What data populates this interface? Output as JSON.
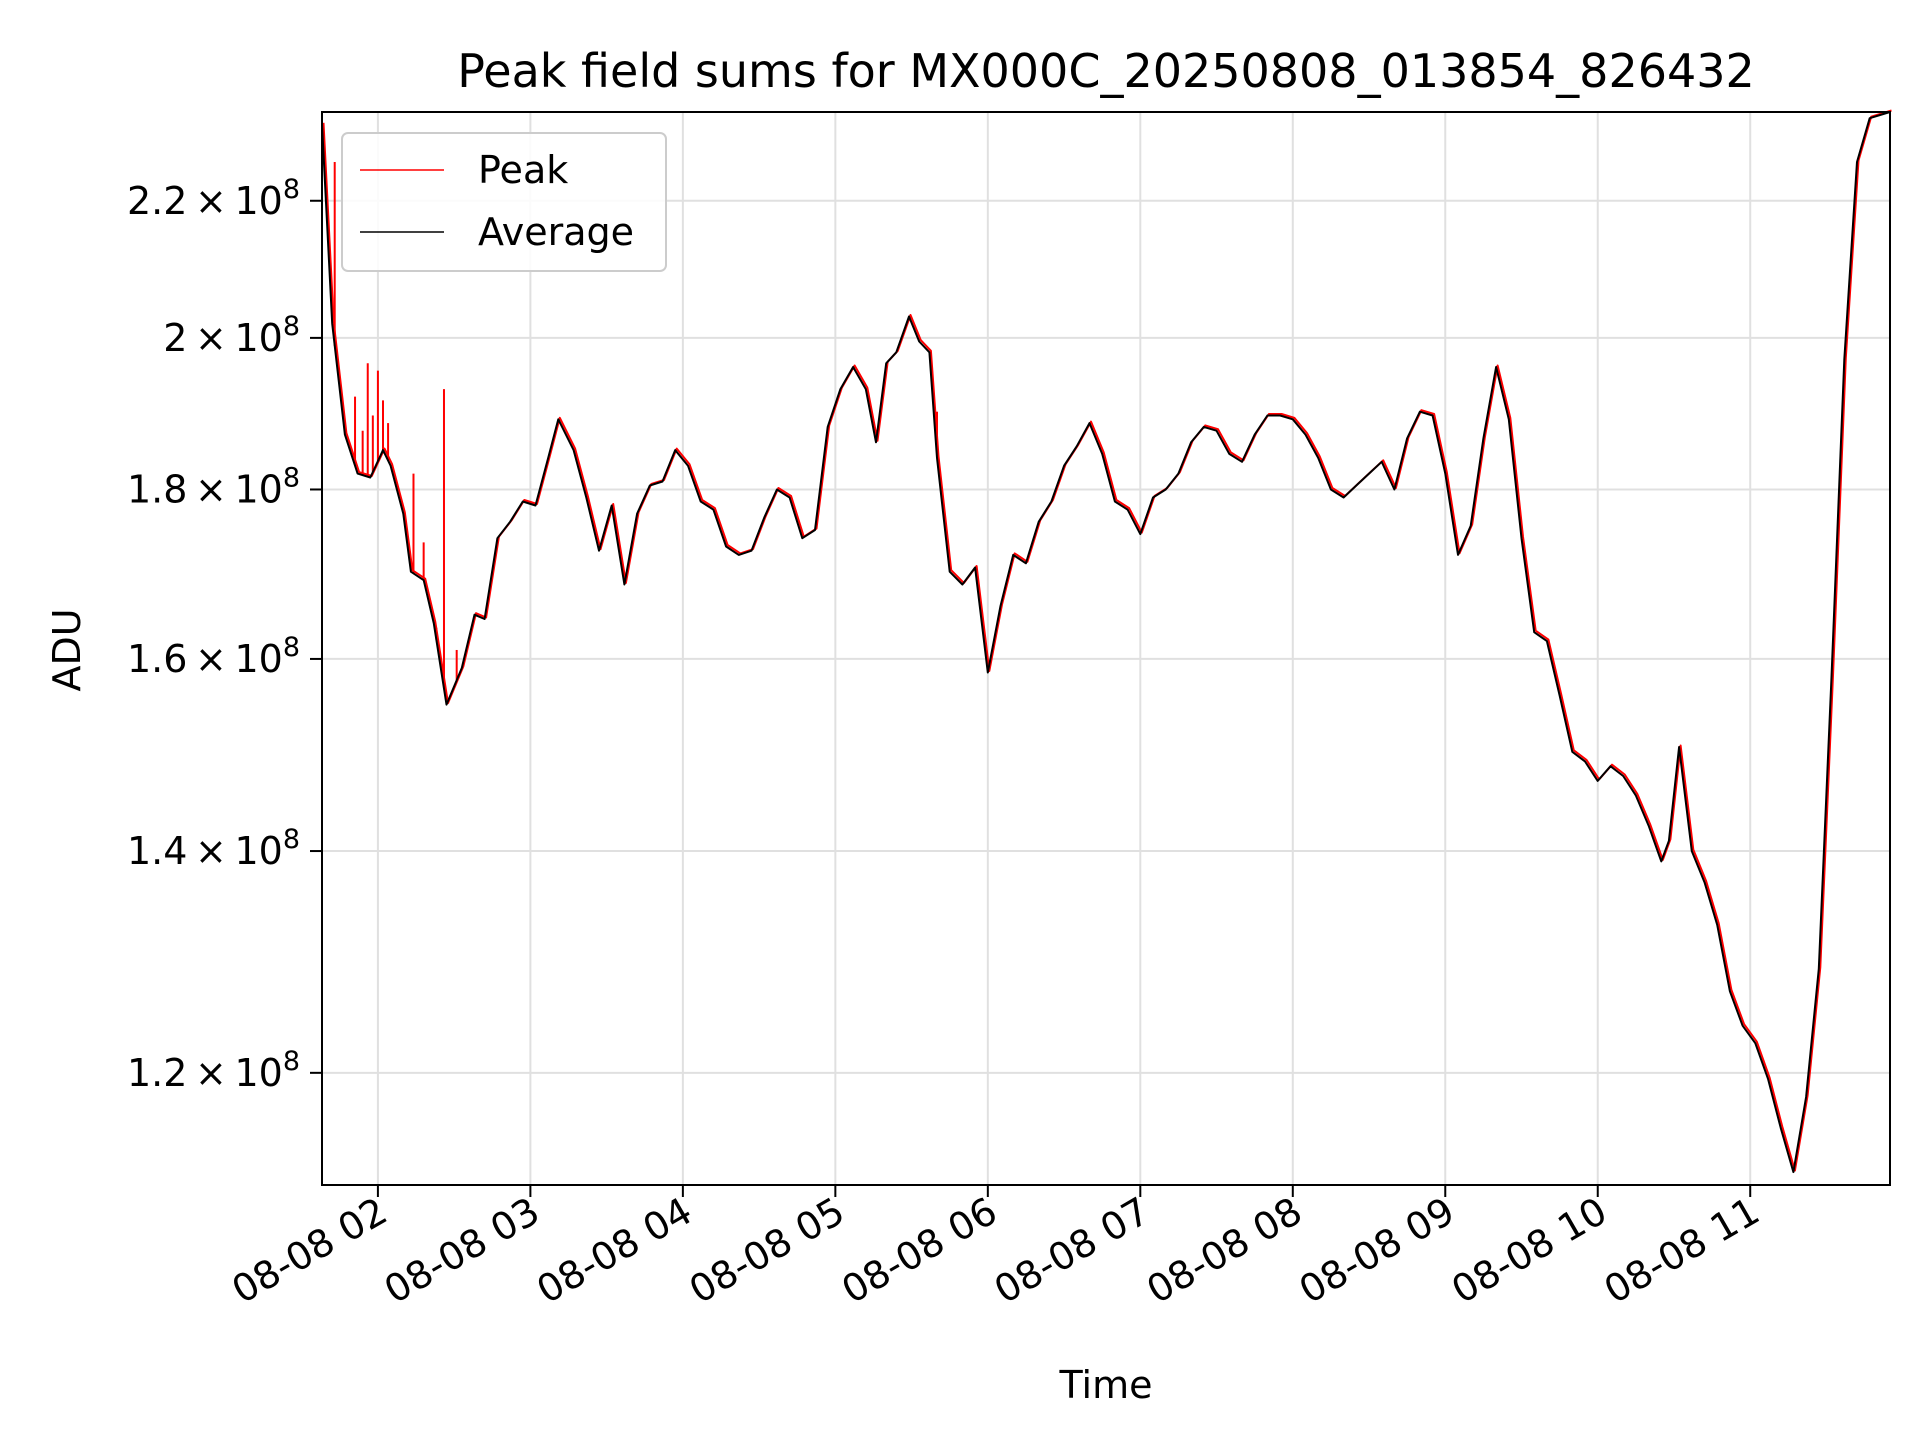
{
  "chart_data": {
    "type": "line",
    "title": "Peak field sums for MX000C_20250808_013854_826432",
    "xlabel": "Time",
    "ylabel": "ADU",
    "y_scale": "log",
    "xlim": [
      "08-08 01:38",
      "08-08 11:55"
    ],
    "ylim": [
      111000000,
      234000000
    ],
    "grid": true,
    "legend_position": "upper-left",
    "x_ticks": [
      "08-08 02",
      "08-08 03",
      "08-08 04",
      "08-08 05",
      "08-08 06",
      "08-08 07",
      "08-08 08",
      "08-08 09",
      "08-08 10",
      "08-08 11"
    ],
    "y_ticks": [
      {
        "value": 120000000,
        "mantissa": "1.2",
        "base": "10",
        "exponent": "8"
      },
      {
        "value": 140000000,
        "mantissa": "1.4",
        "base": "10",
        "exponent": "8"
      },
      {
        "value": 160000000,
        "mantissa": "1.6",
        "base": "10",
        "exponent": "8"
      },
      {
        "value": 180000000,
        "mantissa": "1.8",
        "base": "10",
        "exponent": "8"
      },
      {
        "value": 200000000,
        "mantissa": "2",
        "base": "10",
        "exponent": "8"
      },
      {
        "value": 220000000,
        "mantissa": "2.2",
        "base": "10",
        "exponent": "8"
      }
    ],
    "series": [
      {
        "name": "Average",
        "color": "#000000",
        "points": [
          [
            "08-08 01:38",
            232000000
          ],
          [
            "08-08 01:42",
            202000000
          ],
          [
            "08-08 01:47",
            187000000
          ],
          [
            "08-08 01:52",
            182000000
          ],
          [
            "08-08 01:57",
            181500000
          ],
          [
            "08-08 02:02",
            185000000
          ],
          [
            "08-08 02:05",
            183000000
          ],
          [
            "08-08 02:10",
            177000000
          ],
          [
            "08-08 02:13",
            170000000
          ],
          [
            "08-08 02:18",
            169000000
          ],
          [
            "08-08 02:22",
            164000000
          ],
          [
            "08-08 02:27",
            155000000
          ],
          [
            "08-08 02:33",
            159000000
          ],
          [
            "08-08 02:38",
            165000000
          ],
          [
            "08-08 02:42",
            164500000
          ],
          [
            "08-08 02:47",
            174000000
          ],
          [
            "08-08 02:52",
            176000000
          ],
          [
            "08-08 02:57",
            178500000
          ],
          [
            "08-08 03:02",
            178000000
          ],
          [
            "08-08 03:07",
            184000000
          ],
          [
            "08-08 03:11",
            189000000
          ],
          [
            "08-08 03:17",
            185000000
          ],
          [
            "08-08 03:22",
            179000000
          ],
          [
            "08-08 03:27",
            172500000
          ],
          [
            "08-08 03:32",
            178000000
          ],
          [
            "08-08 03:37",
            168500000
          ],
          [
            "08-08 03:42",
            177000000
          ],
          [
            "08-08 03:47",
            180500000
          ],
          [
            "08-08 03:52",
            181000000
          ],
          [
            "08-08 03:57",
            185000000
          ],
          [
            "08-08 04:02",
            183000000
          ],
          [
            "08-08 04:07",
            178500000
          ],
          [
            "08-08 04:12",
            177500000
          ],
          [
            "08-08 04:17",
            173000000
          ],
          [
            "08-08 04:22",
            172000000
          ],
          [
            "08-08 04:27",
            172500000
          ],
          [
            "08-08 04:32",
            176500000
          ],
          [
            "08-08 04:37",
            180000000
          ],
          [
            "08-08 04:42",
            179000000
          ],
          [
            "08-08 04:47",
            174000000
          ],
          [
            "08-08 04:52",
            175000000
          ],
          [
            "08-08 04:57",
            188000000
          ],
          [
            "08-08 05:02",
            193000000
          ],
          [
            "08-08 05:07",
            196000000
          ],
          [
            "08-08 05:12",
            193000000
          ],
          [
            "08-08 05:16",
            186000000
          ],
          [
            "08-08 05:20",
            196500000
          ],
          [
            "08-08 05:24",
            198000000
          ],
          [
            "08-08 05:29",
            203000000
          ],
          [
            "08-08 05:33",
            199500000
          ],
          [
            "08-08 05:37",
            198000000
          ],
          [
            "08-08 05:40",
            184000000
          ],
          [
            "08-08 05:45",
            170000000
          ],
          [
            "08-08 05:50",
            168500000
          ],
          [
            "08-08 05:55",
            170500000
          ],
          [
            "08-08 06:00",
            158500000
          ],
          [
            "08-08 06:05",
            166000000
          ],
          [
            "08-08 06:10",
            172000000
          ],
          [
            "08-08 06:15",
            171000000
          ],
          [
            "08-08 06:20",
            176000000
          ],
          [
            "08-08 06:25",
            178500000
          ],
          [
            "08-08 06:30",
            183000000
          ],
          [
            "08-08 06:35",
            185500000
          ],
          [
            "08-08 06:40",
            188500000
          ],
          [
            "08-08 06:45",
            184500000
          ],
          [
            "08-08 06:50",
            178500000
          ],
          [
            "08-08 06:55",
            177500000
          ],
          [
            "08-08 07:00",
            174500000
          ],
          [
            "08-08 07:05",
            179000000
          ],
          [
            "08-08 07:10",
            180000000
          ],
          [
            "08-08 07:15",
            182000000
          ],
          [
            "08-08 07:20",
            186000000
          ],
          [
            "08-08 07:25",
            188000000
          ],
          [
            "08-08 07:30",
            187500000
          ],
          [
            "08-08 07:35",
            184500000
          ],
          [
            "08-08 07:40",
            183500000
          ],
          [
            "08-08 07:45",
            187000000
          ],
          [
            "08-08 07:50",
            189500000
          ],
          [
            "08-08 07:55",
            189500000
          ],
          [
            "08-08 08:00",
            189000000
          ],
          [
            "08-08 08:05",
            187000000
          ],
          [
            "08-08 08:10",
            184000000
          ],
          [
            "08-08 08:15",
            180000000
          ],
          [
            "08-08 08:20",
            179000000
          ],
          [
            "08-08 08:25",
            180500000
          ],
          [
            "08-08 08:30",
            182000000
          ],
          [
            "08-08 08:35",
            183500000
          ],
          [
            "08-08 08:40",
            180000000
          ],
          [
            "08-08 08:45",
            186500000
          ],
          [
            "08-08 08:50",
            190000000
          ],
          [
            "08-08 08:55",
            189500000
          ],
          [
            "08-08 09:00",
            182000000
          ],
          [
            "08-08 09:05",
            172000000
          ],
          [
            "08-08 09:10",
            175500000
          ],
          [
            "08-08 09:15",
            186500000
          ],
          [
            "08-08 09:20",
            196000000
          ],
          [
            "08-08 09:25",
            189000000
          ],
          [
            "08-08 09:30",
            174000000
          ],
          [
            "08-08 09:35",
            163000000
          ],
          [
            "08-08 09:40",
            162000000
          ],
          [
            "08-08 09:45",
            156000000
          ],
          [
            "08-08 09:50",
            150000000
          ],
          [
            "08-08 09:55",
            149000000
          ],
          [
            "08-08 10:00",
            147000000
          ],
          [
            "08-08 10:05",
            148500000
          ],
          [
            "08-08 10:10",
            147500000
          ],
          [
            "08-08 10:15",
            145500000
          ],
          [
            "08-08 10:20",
            142500000
          ],
          [
            "08-08 10:25",
            139000000
          ],
          [
            "08-08 10:28",
            141000000
          ],
          [
            "08-08 10:32",
            150500000
          ],
          [
            "08-08 10:37",
            140000000
          ],
          [
            "08-08 10:42",
            137000000
          ],
          [
            "08-08 10:47",
            133000000
          ],
          [
            "08-08 10:52",
            127000000
          ],
          [
            "08-08 10:57",
            124000000
          ],
          [
            "08-08 11:02",
            122500000
          ],
          [
            "08-08 11:07",
            119500000
          ],
          [
            "08-08 11:12",
            115500000
          ],
          [
            "08-08 11:17",
            112000000
          ],
          [
            "08-08 11:22",
            118000000
          ],
          [
            "08-08 11:27",
            129000000
          ],
          [
            "08-08 11:32",
            158000000
          ],
          [
            "08-08 11:37",
            197000000
          ],
          [
            "08-08 11:42",
            226000000
          ],
          [
            "08-08 11:47",
            233000000
          ],
          [
            "08-08 11:55",
            234000000
          ]
        ]
      },
      {
        "name": "Peak",
        "color": "#ff0000",
        "spikes": [
          [
            "08-08 01:43",
            226000000
          ],
          [
            "08-08 01:51",
            192000000
          ],
          [
            "08-08 01:54",
            187500000
          ],
          [
            "08-08 01:56",
            196500000
          ],
          [
            "08-08 01:58",
            189500000
          ],
          [
            "08-08 02:00",
            195500000
          ],
          [
            "08-08 02:02",
            191500000
          ],
          [
            "08-08 02:04",
            188500000
          ],
          [
            "08-08 02:14",
            182000000
          ],
          [
            "08-08 02:18",
            173500000
          ],
          [
            "08-08 02:23",
            163500000
          ],
          [
            "08-08 02:26",
            193000000
          ],
          [
            "08-08 02:31",
            161000000
          ],
          [
            "08-08 05:40",
            190000000
          ]
        ]
      }
    ]
  }
}
